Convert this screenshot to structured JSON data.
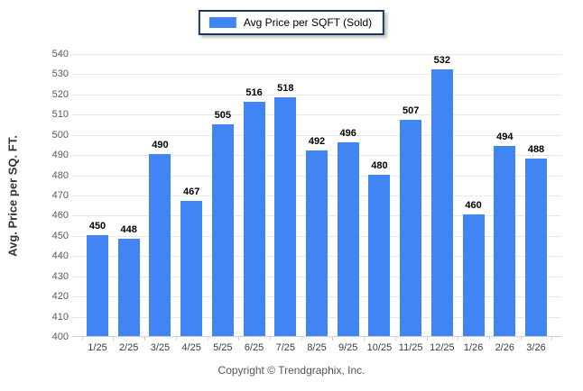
{
  "legend": {
    "label": "Avg Price per SQFT (Sold)",
    "swatch_color": "#4184F3"
  },
  "chart_data": {
    "type": "bar",
    "title": "",
    "series_name": "Avg Price per SQFT (Sold)",
    "categories": [
      "1/25",
      "2/25",
      "3/25",
      "4/25",
      "5/25",
      "6/25",
      "7/25",
      "8/25",
      "9/25",
      "10/25",
      "11/25",
      "12/25",
      "1/26",
      "2/26",
      "3/26"
    ],
    "values": [
      450,
      448,
      490,
      467,
      505,
      516,
      518,
      492,
      496,
      480,
      507,
      532,
      460,
      494,
      488
    ],
    "xlabel": "",
    "ylabel": "Avg. Price per SQ. FT.",
    "ylim": [
      400,
      540
    ],
    "ytick_step": 10,
    "grid": true,
    "legend_position": "top",
    "bar_color": "#4184F3",
    "value_labels": true
  },
  "footer": {
    "copyright": "Copyright © Trendgraphix, Inc."
  }
}
